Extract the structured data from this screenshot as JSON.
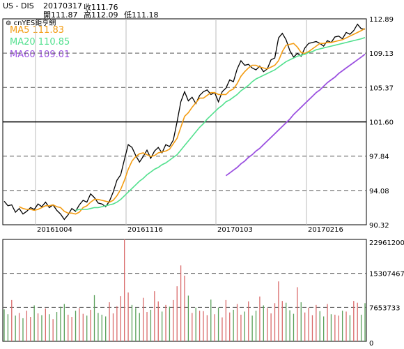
{
  "header": {
    "symbol": "US - DIS",
    "date": "20170317",
    "close_label": "收111.76",
    "open_label": "開111.87",
    "high_label": "高112.09",
    "low_label": "低111.18"
  },
  "legend": {
    "source": "cnYES鉅亨網",
    "ma5": "MA5 111.83",
    "ma20": "MA20 110.85",
    "ma60": "MA60 109.01"
  },
  "colors": {
    "price": "#000000",
    "ma5": "#f39c12",
    "ma20": "#52e08e",
    "ma60": "#9b51e0",
    "vol_up": "#d96a6a",
    "vol_down": "#5aa05a"
  },
  "chart_data": [
    {
      "type": "line",
      "title": "US - DIS",
      "x_ticks": [
        "20161004",
        "20161116",
        "20170103",
        "20170216"
      ],
      "y_ticks": [
        112.89,
        109.13,
        105.37,
        101.6,
        97.84,
        94.08,
        90.32
      ],
      "ylim": [
        90.32,
        112.89
      ],
      "series": [
        {
          "name": "Price",
          "values": [
            92.9,
            92.4,
            92.5,
            91.7,
            92.1,
            91.5,
            91.8,
            92.2,
            92.0,
            92.6,
            92.3,
            92.8,
            92.2,
            92.5,
            91.9,
            91.5,
            90.9,
            91.4,
            92.1,
            91.8,
            92.5,
            93.0,
            92.8,
            93.7,
            93.3,
            92.7,
            92.6,
            92.3,
            92.9,
            93.9,
            95.2,
            95.8,
            97.5,
            99.1,
            98.8,
            97.9,
            97.2,
            97.8,
            98.5,
            97.6,
            98.4,
            98.8,
            98.2,
            99.1,
            98.9,
            99.6,
            101.6,
            103.8,
            104.9,
            103.9,
            104.3,
            103.6,
            104.5,
            104.9,
            105.1,
            104.6,
            104.8,
            103.8,
            104.9,
            105.3,
            106.2,
            106.0,
            107.4,
            108.3,
            107.8,
            107.9,
            107.5,
            107.3,
            107.7,
            107.1,
            107.4,
            108.4,
            108.6,
            110.8,
            111.3,
            110.6,
            109.4,
            108.7,
            109.1,
            108.8,
            109.7,
            110.2,
            110.3,
            110.4,
            110.2,
            109.9,
            110.5,
            110.3,
            110.9,
            111.0,
            110.7,
            111.4,
            111.2,
            111.6,
            112.3,
            111.8,
            111.76
          ]
        },
        {
          "name": "MA5",
          "values": [
            null,
            null,
            null,
            null,
            92.3,
            92.1,
            92.0,
            92.0,
            91.9,
            92.0,
            92.2,
            92.4,
            92.4,
            92.5,
            92.3,
            92.2,
            91.8,
            91.6,
            91.6,
            91.5,
            91.7,
            92.2,
            92.4,
            92.8,
            93.1,
            93.1,
            93.0,
            92.9,
            92.8,
            93.0,
            93.5,
            94.2,
            95.2,
            96.4,
            97.3,
            97.8,
            98.1,
            98.2,
            98.0,
            97.8,
            97.9,
            98.2,
            98.3,
            98.4,
            98.6,
            99.2,
            99.8,
            101.0,
            102.2,
            102.6,
            103.2,
            103.7,
            104.2,
            104.2,
            104.5,
            104.8,
            104.8,
            104.6,
            104.6,
            104.6,
            105.0,
            105.2,
            105.8,
            106.6,
            107.1,
            107.5,
            107.8,
            107.8,
            107.6,
            107.5,
            107.4,
            107.6,
            107.8,
            108.3,
            109.3,
            110.0,
            110.1,
            110.2,
            109.8,
            109.2,
            109.1,
            109.3,
            109.6,
            109.9,
            110.2,
            110.2,
            110.3,
            110.3,
            110.4,
            110.5,
            110.6,
            110.8,
            111.0,
            111.2,
            111.4,
            111.6,
            111.83
          ]
        },
        {
          "name": "MA20",
          "values": [
            null,
            null,
            null,
            null,
            null,
            null,
            null,
            null,
            null,
            null,
            null,
            null,
            null,
            null,
            null,
            null,
            null,
            null,
            null,
            91.9,
            92.0,
            92.0,
            92.0,
            92.1,
            92.2,
            92.2,
            92.3,
            92.4,
            92.5,
            92.6,
            92.8,
            93.1,
            93.5,
            93.9,
            94.3,
            94.7,
            95.1,
            95.4,
            95.8,
            96.1,
            96.4,
            96.6,
            96.9,
            97.1,
            97.4,
            97.7,
            98.0,
            98.5,
            99.0,
            99.5,
            100.0,
            100.5,
            101.0,
            101.4,
            101.9,
            102.3,
            102.7,
            103.1,
            103.4,
            103.8,
            104.0,
            104.3,
            104.6,
            105.0,
            105.3,
            105.6,
            106.0,
            106.3,
            106.5,
            106.7,
            106.9,
            107.1,
            107.3,
            107.6,
            107.9,
            108.2,
            108.4,
            108.6,
            108.8,
            108.9,
            109.0,
            109.2,
            109.3,
            109.5,
            109.6,
            109.7,
            109.8,
            109.9,
            110.0,
            110.1,
            110.2,
            110.3,
            110.4,
            110.5,
            110.6,
            110.7,
            110.85
          ]
        },
        {
          "name": "MA60",
          "values": [
            null,
            null,
            null,
            null,
            null,
            null,
            null,
            null,
            null,
            null,
            null,
            null,
            null,
            null,
            null,
            null,
            null,
            null,
            null,
            null,
            null,
            null,
            null,
            null,
            null,
            null,
            null,
            null,
            null,
            null,
            null,
            null,
            null,
            null,
            null,
            null,
            null,
            null,
            null,
            null,
            null,
            null,
            null,
            null,
            null,
            null,
            null,
            null,
            null,
            null,
            null,
            null,
            null,
            null,
            null,
            null,
            null,
            null,
            null,
            95.7,
            96.0,
            96.3,
            96.6,
            97.0,
            97.3,
            97.7,
            98.0,
            98.4,
            98.7,
            99.1,
            99.5,
            99.9,
            100.3,
            100.7,
            101.1,
            101.5,
            101.9,
            102.4,
            102.8,
            103.2,
            103.6,
            104.0,
            104.4,
            104.8,
            105.1,
            105.5,
            105.9,
            106.2,
            106.5,
            106.9,
            107.2,
            107.5,
            107.8,
            108.1,
            108.4,
            108.7,
            109.01
          ]
        }
      ]
    },
    {
      "type": "bar",
      "y_ticks": [
        22961200,
        15307467,
        7653733,
        0
      ],
      "ylim": [
        0,
        22961200
      ],
      "series": [
        {
          "name": "Volume",
          "values": [
            7.2,
            6.1,
            9.3,
            5.8,
            6.4,
            5.2,
            6.9,
            5.5,
            8.1,
            6.3,
            5.9,
            7.4,
            6.1,
            5.0,
            6.6,
            7.8,
            8.4,
            6.0,
            5.5,
            6.9,
            7.5,
            6.2,
            5.8,
            7.1,
            10.4,
            6.4,
            6.0,
            5.6,
            8.8,
            6.3,
            7.9,
            10.2,
            23.0,
            11.0,
            8.2,
            7.5,
            6.4,
            9.8,
            6.6,
            7.1,
            11.3,
            9.0,
            6.7,
            8.2,
            7.8,
            9.3,
            12.4,
            17.1,
            14.8,
            10.3,
            6.4,
            7.6,
            6.9,
            6.8,
            5.9,
            9.4,
            6.1,
            7.6,
            5.4,
            9.3,
            6.5,
            7.1,
            8.4,
            6.0,
            6.7,
            9.0,
            5.8,
            6.9,
            10.1,
            8.1,
            7.5,
            6.3,
            8.6,
            13.5,
            9.1,
            8.7,
            7.0,
            6.2,
            12.2,
            8.8,
            6.5,
            7.6,
            5.9,
            8.2,
            6.8,
            5.6,
            8.4,
            6.1,
            6.0,
            5.8,
            6.9,
            6.7,
            5.9,
            9.1,
            8.7,
            6.0,
            8.6
          ]
        },
        {
          "name": "Direction",
          "values": [
            0,
            0,
            1,
            0,
            1,
            0,
            1,
            1,
            0,
            1,
            0,
            1,
            0,
            1,
            0,
            0,
            0,
            1,
            1,
            0,
            1,
            1,
            0,
            1,
            0,
            0,
            0,
            0,
            1,
            1,
            1,
            1,
            1,
            1,
            0,
            0,
            0,
            1,
            1,
            0,
            1,
            1,
            0,
            1,
            0,
            1,
            1,
            1,
            1,
            0,
            1,
            0,
            1,
            1,
            1,
            0,
            1,
            0,
            1,
            1,
            1,
            0,
            1,
            1,
            0,
            1,
            0,
            0,
            1,
            0,
            1,
            1,
            1,
            1,
            1,
            0,
            0,
            0,
            1,
            0,
            1,
            1,
            1,
            1,
            0,
            0,
            1,
            0,
            1,
            1,
            0,
            1,
            0,
            1,
            1,
            0,
            0
          ]
        }
      ]
    }
  ]
}
